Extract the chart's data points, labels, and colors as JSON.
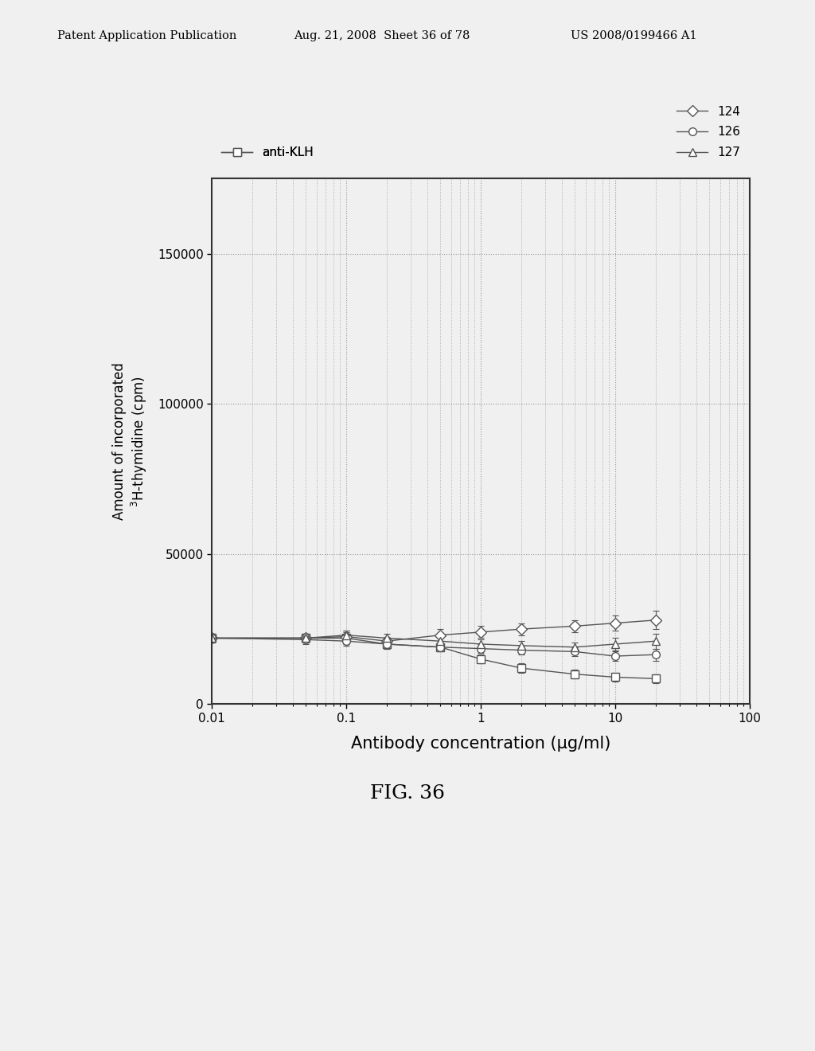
{
  "title": "",
  "xlabel": "Antibody concentration (μg/ml)",
  "ylabel": "Amount of incorporated\n$^3$H-thymidine (cpm)",
  "fig_caption": "FIG. 36",
  "header_left": "Patent Application Publication",
  "header_center": "Aug. 21, 2008  Sheet 36 of 78",
  "header_right": "US 2008/0199466 A1",
  "xlim": [
    0.01,
    100
  ],
  "ylim": [
    0,
    175000
  ],
  "yticks": [
    0,
    50000,
    100000,
    150000
  ],
  "xticks": [
    0.01,
    0.1,
    1,
    10,
    100
  ],
  "series": {
    "124": {
      "x": [
        0.01,
        0.05,
        0.1,
        0.2,
        0.5,
        1,
        2,
        5,
        10,
        20
      ],
      "y": [
        22000,
        22000,
        22500,
        21000,
        23000,
        24000,
        25000,
        26000,
        27000,
        28000
      ],
      "yerr": [
        1500,
        1500,
        2000,
        1500,
        2000,
        2000,
        2000,
        2000,
        2500,
        3000
      ],
      "marker": "D",
      "label": "124",
      "color": "#555555"
    },
    "126": {
      "x": [
        0.01,
        0.05,
        0.1,
        0.2,
        0.5,
        1,
        2,
        5,
        10,
        20
      ],
      "y": [
        22000,
        21500,
        21000,
        20000,
        19000,
        18500,
        18000,
        17500,
        16000,
        16500
      ],
      "yerr": [
        1500,
        1500,
        1500,
        1500,
        1500,
        1500,
        1500,
        1500,
        1500,
        2000
      ],
      "marker": "o",
      "label": "126",
      "color": "#555555"
    },
    "anti-KLH": {
      "x": [
        0.01,
        0.05,
        0.1,
        0.2,
        0.5,
        1,
        2,
        5,
        10,
        20
      ],
      "y": [
        22000,
        22000,
        22000,
        20000,
        19000,
        15000,
        12000,
        10000,
        9000,
        8500
      ],
      "yerr": [
        1500,
        1500,
        2000,
        1500,
        1500,
        1500,
        1500,
        1500,
        1500,
        1500
      ],
      "marker": "s",
      "label": "anti-KLH",
      "color": "#555555"
    },
    "127": {
      "x": [
        0.01,
        0.05,
        0.1,
        0.2,
        0.5,
        1,
        2,
        5,
        10,
        20
      ],
      "y": [
        22000,
        22000,
        23000,
        22000,
        21000,
        20000,
        19500,
        19000,
        20000,
        21000
      ],
      "yerr": [
        1500,
        1500,
        1500,
        1500,
        1500,
        1500,
        1500,
        1500,
        2000,
        2500
      ],
      "marker": "^",
      "label": "127",
      "color": "#555555"
    }
  },
  "line_color": "#555555",
  "marker_size": 7,
  "line_width": 1.0,
  "grid_color": "#aaaaaa",
  "grid_style": ":",
  "bg_color": "#f0f0f0",
  "plot_bg_color": "#f0f0f0",
  "border_color": "#333333"
}
